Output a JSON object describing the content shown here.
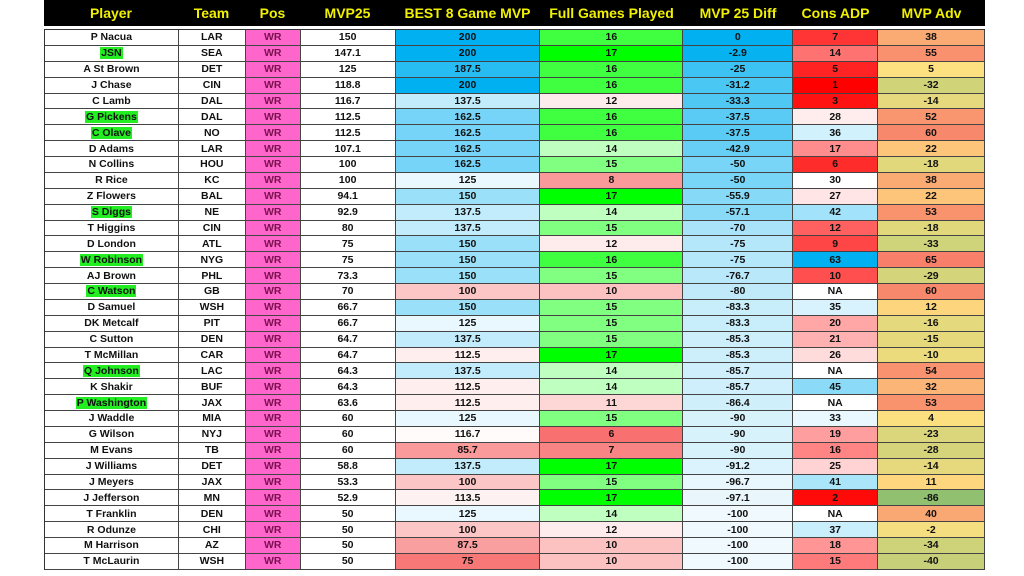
{
  "columns": [
    "Player",
    "Team",
    "Pos",
    "MVP25",
    "BEST 8 Game MVP",
    "Full Games Played",
    "MVP 25 Diff",
    "Cons ADP",
    "MVP Adv"
  ],
  "colors": {
    "header_bg": "#000000",
    "header_text": "#f0f000",
    "pos_bg": "#ff66cc",
    "highlight": "#22ee22",
    "blue": "#00b0f0",
    "green": "#00ff00",
    "red": "#ff0000",
    "salmon": "#f8806a",
    "yellow": "#fde080",
    "olive": "#90c070"
  },
  "rows": [
    {
      "player": "P Nacua",
      "team": "LAR",
      "pos": "WR",
      "mvp25": "150",
      "best8": "200",
      "games": "16",
      "diff": "0",
      "adp": "7",
      "adv": "38",
      "highlight": false
    },
    {
      "player": "JSN",
      "team": "SEA",
      "pos": "WR",
      "mvp25": "147.1",
      "best8": "200",
      "games": "17",
      "diff": "-2.9",
      "adp": "14",
      "adv": "55",
      "highlight": true
    },
    {
      "player": "A St Brown",
      "team": "DET",
      "pos": "WR",
      "mvp25": "125",
      "best8": "187.5",
      "games": "16",
      "diff": "-25",
      "adp": "5",
      "adv": "5",
      "highlight": false
    },
    {
      "player": "J Chase",
      "team": "CIN",
      "pos": "WR",
      "mvp25": "118.8",
      "best8": "200",
      "games": "16",
      "diff": "-31.2",
      "adp": "1",
      "adv": "-32",
      "highlight": false
    },
    {
      "player": "C Lamb",
      "team": "DAL",
      "pos": "WR",
      "mvp25": "116.7",
      "best8": "137.5",
      "games": "12",
      "diff": "-33.3",
      "adp": "3",
      "adv": "-14",
      "highlight": false
    },
    {
      "player": "G Pickens",
      "team": "DAL",
      "pos": "WR",
      "mvp25": "112.5",
      "best8": "162.5",
      "games": "16",
      "diff": "-37.5",
      "adp": "28",
      "adv": "52",
      "highlight": true
    },
    {
      "player": "C Olave",
      "team": "NO",
      "pos": "WR",
      "mvp25": "112.5",
      "best8": "162.5",
      "games": "16",
      "diff": "-37.5",
      "adp": "36",
      "adv": "60",
      "highlight": true
    },
    {
      "player": "D Adams",
      "team": "LAR",
      "pos": "WR",
      "mvp25": "107.1",
      "best8": "162.5",
      "games": "14",
      "diff": "-42.9",
      "adp": "17",
      "adv": "22",
      "highlight": false
    },
    {
      "player": "N Collins",
      "team": "HOU",
      "pos": "WR",
      "mvp25": "100",
      "best8": "162.5",
      "games": "15",
      "diff": "-50",
      "adp": "6",
      "adv": "-18",
      "highlight": false
    },
    {
      "player": "R Rice",
      "team": "KC",
      "pos": "WR",
      "mvp25": "100",
      "best8": "125",
      "games": "8",
      "diff": "-50",
      "adp": "30",
      "adv": "38",
      "highlight": false
    },
    {
      "player": "Z Flowers",
      "team": "BAL",
      "pos": "WR",
      "mvp25": "94.1",
      "best8": "150",
      "games": "17",
      "diff": "-55.9",
      "adp": "27",
      "adv": "22",
      "highlight": false
    },
    {
      "player": "S Diggs",
      "team": "NE",
      "pos": "WR",
      "mvp25": "92.9",
      "best8": "137.5",
      "games": "14",
      "diff": "-57.1",
      "adp": "42",
      "adv": "53",
      "highlight": true
    },
    {
      "player": "T Higgins",
      "team": "CIN",
      "pos": "WR",
      "mvp25": "80",
      "best8": "137.5",
      "games": "15",
      "diff": "-70",
      "adp": "12",
      "adv": "-18",
      "highlight": false
    },
    {
      "player": "D London",
      "team": "ATL",
      "pos": "WR",
      "mvp25": "75",
      "best8": "150",
      "games": "12",
      "diff": "-75",
      "adp": "9",
      "adv": "-33",
      "highlight": false
    },
    {
      "player": "W Robinson",
      "team": "NYG",
      "pos": "WR",
      "mvp25": "75",
      "best8": "150",
      "games": "16",
      "diff": "-75",
      "adp": "63",
      "adv": "65",
      "highlight": true
    },
    {
      "player": "AJ Brown",
      "team": "PHL",
      "pos": "WR",
      "mvp25": "73.3",
      "best8": "150",
      "games": "15",
      "diff": "-76.7",
      "adp": "10",
      "adv": "-29",
      "highlight": false
    },
    {
      "player": "C Watson",
      "team": "GB",
      "pos": "WR",
      "mvp25": "70",
      "best8": "100",
      "games": "10",
      "diff": "-80",
      "adp": "NA",
      "adv": "60",
      "highlight": true
    },
    {
      "player": "D Samuel",
      "team": "WSH",
      "pos": "WR",
      "mvp25": "66.7",
      "best8": "150",
      "games": "15",
      "diff": "-83.3",
      "adp": "35",
      "adv": "12",
      "highlight": false
    },
    {
      "player": "DK Metcalf",
      "team": "PIT",
      "pos": "WR",
      "mvp25": "66.7",
      "best8": "125",
      "games": "15",
      "diff": "-83.3",
      "adp": "20",
      "adv": "-16",
      "highlight": false
    },
    {
      "player": "C Sutton",
      "team": "DEN",
      "pos": "WR",
      "mvp25": "64.7",
      "best8": "137.5",
      "games": "15",
      "diff": "-85.3",
      "adp": "21",
      "adv": "-15",
      "highlight": false
    },
    {
      "player": "T McMillan",
      "team": "CAR",
      "pos": "WR",
      "mvp25": "64.7",
      "best8": "112.5",
      "games": "17",
      "diff": "-85.3",
      "adp": "26",
      "adv": "-10",
      "highlight": false
    },
    {
      "player": "Q Johnson",
      "team": "LAC",
      "pos": "WR",
      "mvp25": "64.3",
      "best8": "137.5",
      "games": "14",
      "diff": "-85.7",
      "adp": "NA",
      "adv": "54",
      "highlight": true
    },
    {
      "player": "K Shakir",
      "team": "BUF",
      "pos": "WR",
      "mvp25": "64.3",
      "best8": "112.5",
      "games": "14",
      "diff": "-85.7",
      "adp": "45",
      "adv": "32",
      "highlight": false
    },
    {
      "player": "P Washington",
      "team": "JAX",
      "pos": "WR",
      "mvp25": "63.6",
      "best8": "112.5",
      "games": "11",
      "diff": "-86.4",
      "adp": "NA",
      "adv": "53",
      "highlight": true
    },
    {
      "player": "J Waddle",
      "team": "MIA",
      "pos": "WR",
      "mvp25": "60",
      "best8": "125",
      "games": "15",
      "diff": "-90",
      "adp": "33",
      "adv": "4",
      "highlight": false
    },
    {
      "player": "G Wilson",
      "team": "NYJ",
      "pos": "WR",
      "mvp25": "60",
      "best8": "116.7",
      "games": "6",
      "diff": "-90",
      "adp": "19",
      "adv": "-23",
      "highlight": false
    },
    {
      "player": "M Evans",
      "team": "TB",
      "pos": "WR",
      "mvp25": "60",
      "best8": "85.7",
      "games": "7",
      "diff": "-90",
      "adp": "16",
      "adv": "-28",
      "highlight": false
    },
    {
      "player": "J Williams",
      "team": "DET",
      "pos": "WR",
      "mvp25": "58.8",
      "best8": "137.5",
      "games": "17",
      "diff": "-91.2",
      "adp": "25",
      "adv": "-14",
      "highlight": false
    },
    {
      "player": "J Meyers",
      "team": "JAX",
      "pos": "WR",
      "mvp25": "53.3",
      "best8": "100",
      "games": "15",
      "diff": "-96.7",
      "adp": "41",
      "adv": "11",
      "highlight": false
    },
    {
      "player": "J Jefferson",
      "team": "MN",
      "pos": "WR",
      "mvp25": "52.9",
      "best8": "113.5",
      "games": "17",
      "diff": "-97.1",
      "adp": "2",
      "adv": "-86",
      "highlight": false
    },
    {
      "player": "T Franklin",
      "team": "DEN",
      "pos": "WR",
      "mvp25": "50",
      "best8": "125",
      "games": "14",
      "diff": "-100",
      "adp": "NA",
      "adv": "40",
      "highlight": false
    },
    {
      "player": "R Odunze",
      "team": "CHI",
      "pos": "WR",
      "mvp25": "50",
      "best8": "100",
      "games": "12",
      "diff": "-100",
      "adp": "37",
      "adv": "-2",
      "highlight": false
    },
    {
      "player": "M Harrison",
      "team": "AZ",
      "pos": "WR",
      "mvp25": "50",
      "best8": "87.5",
      "games": "10",
      "diff": "-100",
      "adp": "18",
      "adv": "-34",
      "highlight": false
    },
    {
      "player": "T McLaurin",
      "team": "WSH",
      "pos": "WR",
      "mvp25": "50",
      "best8": "75",
      "games": "10",
      "diff": "-100",
      "adp": "15",
      "adv": "-40",
      "highlight": false
    }
  ]
}
